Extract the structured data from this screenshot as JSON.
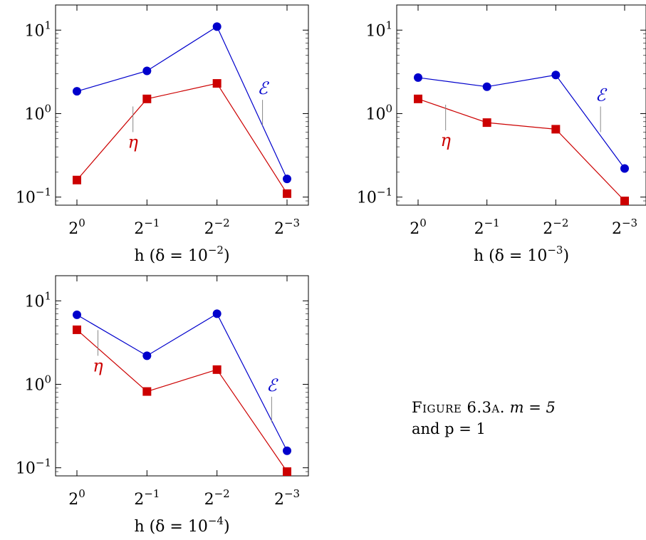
{
  "chart_data": [
    {
      "type": "line",
      "yscale": "log",
      "ylim": [
        0.08,
        20
      ],
      "y_ticks": [
        {
          "base": "10",
          "exp": "1",
          "value": 10
        },
        {
          "base": "10",
          "exp": "0",
          "value": 1
        },
        {
          "base": "10",
          "exp": "−1",
          "value": 0.1
        }
      ],
      "categories": [
        {
          "base": "2",
          "exp": "0"
        },
        {
          "base": "2",
          "exp": "−1"
        },
        {
          "base": "2",
          "exp": "−2"
        },
        {
          "base": "2",
          "exp": "−3"
        }
      ],
      "xlabel": {
        "main": "h (δ = 10",
        "exp": "−2",
        "close": ")"
      },
      "series": [
        {
          "name": "ℰ",
          "color": "#0000cc",
          "marker": "circle",
          "values": [
            1.85,
            3.25,
            11.0,
            0.165
          ]
        },
        {
          "name": "η",
          "color": "#cc0000",
          "marker": "square",
          "values": [
            0.16,
            1.5,
            2.3,
            0.11
          ]
        }
      ],
      "grid": false
    },
    {
      "type": "line",
      "yscale": "log",
      "ylim": [
        0.08,
        20
      ],
      "y_ticks": [
        {
          "base": "10",
          "exp": "1",
          "value": 10
        },
        {
          "base": "10",
          "exp": "0",
          "value": 1
        },
        {
          "base": "10",
          "exp": "−1",
          "value": 0.1
        }
      ],
      "categories": [
        {
          "base": "2",
          "exp": "0"
        },
        {
          "base": "2",
          "exp": "−1"
        },
        {
          "base": "2",
          "exp": "−2"
        },
        {
          "base": "2",
          "exp": "−3"
        }
      ],
      "xlabel": {
        "main": "h (δ = 10",
        "exp": "−3",
        "close": ")"
      },
      "series": [
        {
          "name": "ℰ",
          "color": "#0000cc",
          "marker": "circle",
          "values": [
            2.7,
            2.1,
            2.9,
            0.22
          ]
        },
        {
          "name": "η",
          "color": "#cc0000",
          "marker": "square",
          "values": [
            1.5,
            0.78,
            0.65,
            0.09
          ]
        }
      ],
      "grid": false
    },
    {
      "type": "line",
      "yscale": "log",
      "ylim": [
        0.08,
        20
      ],
      "y_ticks": [
        {
          "base": "10",
          "exp": "1",
          "value": 10
        },
        {
          "base": "10",
          "exp": "0",
          "value": 1
        },
        {
          "base": "10",
          "exp": "−1",
          "value": 0.1
        }
      ],
      "categories": [
        {
          "base": "2",
          "exp": "0"
        },
        {
          "base": "2",
          "exp": "−1"
        },
        {
          "base": "2",
          "exp": "−2"
        },
        {
          "base": "2",
          "exp": "−3"
        }
      ],
      "xlabel": {
        "main": "h (δ = 10",
        "exp": "−4",
        "close": ")"
      },
      "series": [
        {
          "name": "ℰ",
          "color": "#0000cc",
          "marker": "circle",
          "values": [
            6.8,
            2.2,
            7.0,
            0.16
          ]
        },
        {
          "name": "η",
          "color": "#cc0000",
          "marker": "square",
          "values": [
            4.5,
            0.82,
            1.5,
            0.09
          ]
        }
      ],
      "grid": false
    }
  ],
  "caption": {
    "head": "Figure 6.3a.",
    "text_1": "m = 5",
    "text_2": "and p = 1"
  }
}
